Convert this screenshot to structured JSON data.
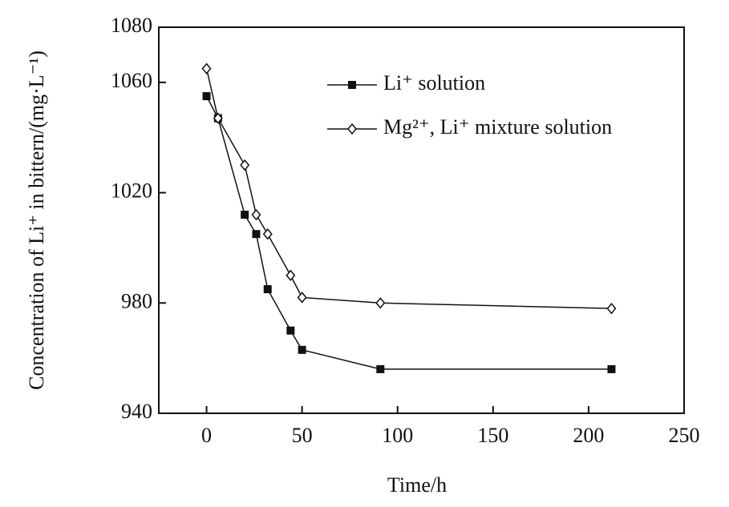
{
  "chart_data": {
    "type": "line",
    "x_label": "Time/h",
    "y_label": "Concentration of Li⁺ in bittern/(mg·L⁻¹)",
    "xlim": [
      -25,
      250
    ],
    "xticks": [
      0,
      50,
      100,
      150,
      200,
      250
    ],
    "ylim": [
      940,
      1080
    ],
    "yticks": [
      940,
      980,
      1020,
      1060,
      1080
    ],
    "legend": "upper right",
    "series": [
      {
        "name": "Li⁺ solution",
        "color": "#111111",
        "marker": "square",
        "x": [
          0,
          6,
          20,
          26,
          32,
          44,
          50,
          91,
          212
        ],
        "values": [
          1055,
          1047,
          1012,
          1005,
          985,
          970,
          963,
          956,
          956
        ]
      },
      {
        "name": "Mg²⁺, Li⁺ mixture solution",
        "color": "#111111",
        "marker": "diamond",
        "x": [
          0,
          6,
          20,
          26,
          32,
          44,
          50,
          91,
          212
        ],
        "values": [
          1065,
          1047,
          1030,
          1012,
          1005,
          990,
          982,
          980,
          978
        ]
      }
    ]
  }
}
